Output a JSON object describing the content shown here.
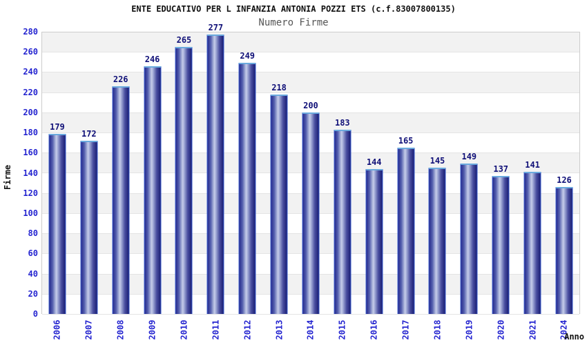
{
  "chart_data": {
    "type": "bar",
    "title": "ENTE EDUCATIVO PER L INFANZIA ANTONIA POZZI ETS (c.f.83007800135)",
    "subtitle": "Numero Firme",
    "xlabel": "Anno",
    "ylabel": "Firme",
    "categories": [
      "2006",
      "2007",
      "2008",
      "2009",
      "2010",
      "2011",
      "2012",
      "2013",
      "2014",
      "2015",
      "2016",
      "2017",
      "2018",
      "2019",
      "2020",
      "2021",
      "2024"
    ],
    "values": [
      179,
      172,
      226,
      246,
      265,
      277,
      249,
      218,
      200,
      183,
      144,
      165,
      145,
      149,
      137,
      141,
      126
    ],
    "ylim": [
      0,
      280
    ],
    "ytick_step": 20,
    "legend_position": "none",
    "grid": "horizontal-bands-alternating",
    "colors": {
      "bar_gradient_dark": "#1a1e74",
      "bar_gradient_light": "#c6cdea",
      "bar_border": "#3c5fce",
      "bar_top_highlight": "#6aaade",
      "tick_label": "#2525d0",
      "value_label": "#101078",
      "title": "#111111",
      "subtitle": "#555555",
      "band_gray": "#f2f2f2",
      "band_white": "#ffffff",
      "plot_border": "#cccccc"
    }
  }
}
